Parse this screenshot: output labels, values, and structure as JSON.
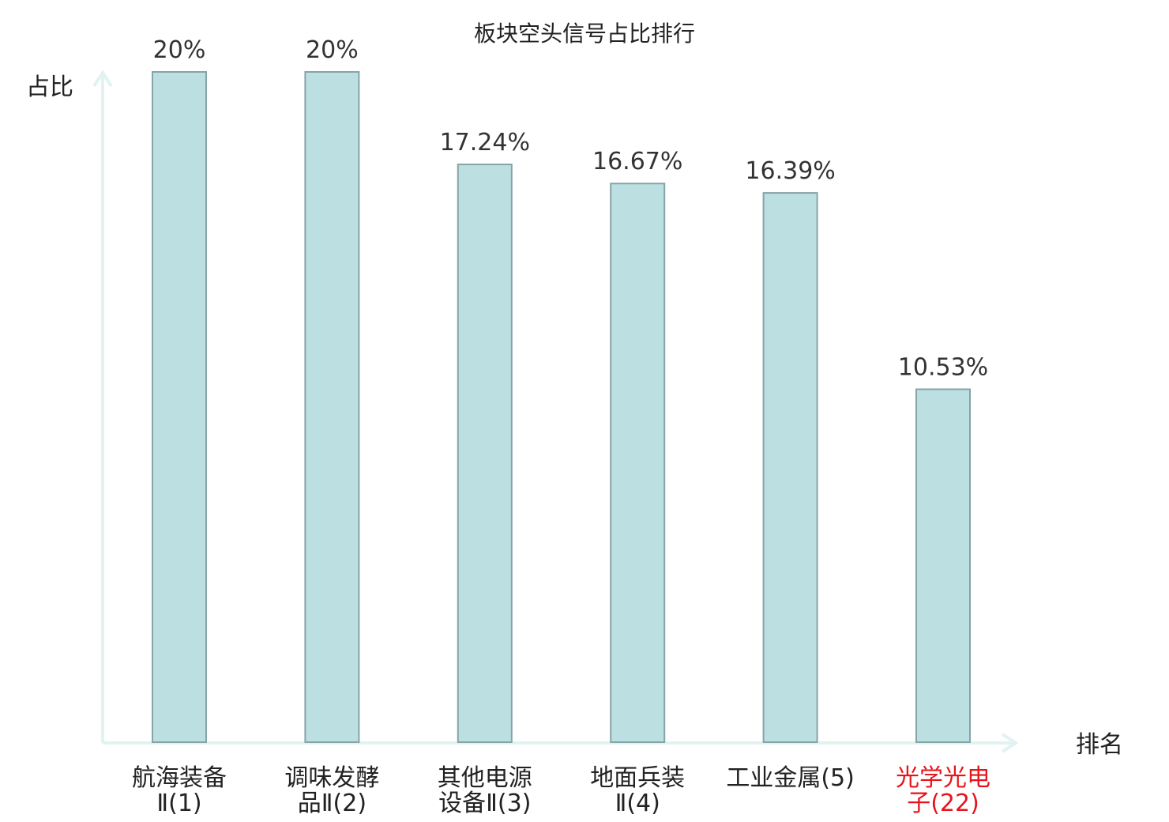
{
  "chart_data": {
    "type": "bar",
    "title": "板块空头信号占比排行",
    "xlabel": "排名",
    "ylabel": "占比",
    "categories": [
      {
        "lines": [
          "航海装备",
          "Ⅱ(1)"
        ],
        "highlight": false
      },
      {
        "lines": [
          "调味发酵",
          "品Ⅱ(2)"
        ],
        "highlight": false
      },
      {
        "lines": [
          "其他电源",
          "设备Ⅱ(3)"
        ],
        "highlight": false
      },
      {
        "lines": [
          "地面兵装",
          "Ⅱ(4)"
        ],
        "highlight": false
      },
      {
        "lines": [
          "工业金属(5)"
        ],
        "highlight": false
      },
      {
        "lines": [
          "光学光电",
          "子(22)"
        ],
        "highlight": true
      }
    ],
    "values": [
      20,
      20,
      17.24,
      16.67,
      16.39,
      10.53
    ],
    "value_labels": [
      "20%",
      "20%",
      "17.24%",
      "16.67%",
      "16.39%",
      "10.53%"
    ],
    "ylim": [
      0,
      20
    ],
    "grid": false,
    "colors": {
      "bar_fill": "#bce0e2",
      "bar_stroke": "#86a4a7",
      "axis": "#e0f3f0",
      "highlight_text": "#e8141b",
      "normal_text": "#222222"
    }
  }
}
